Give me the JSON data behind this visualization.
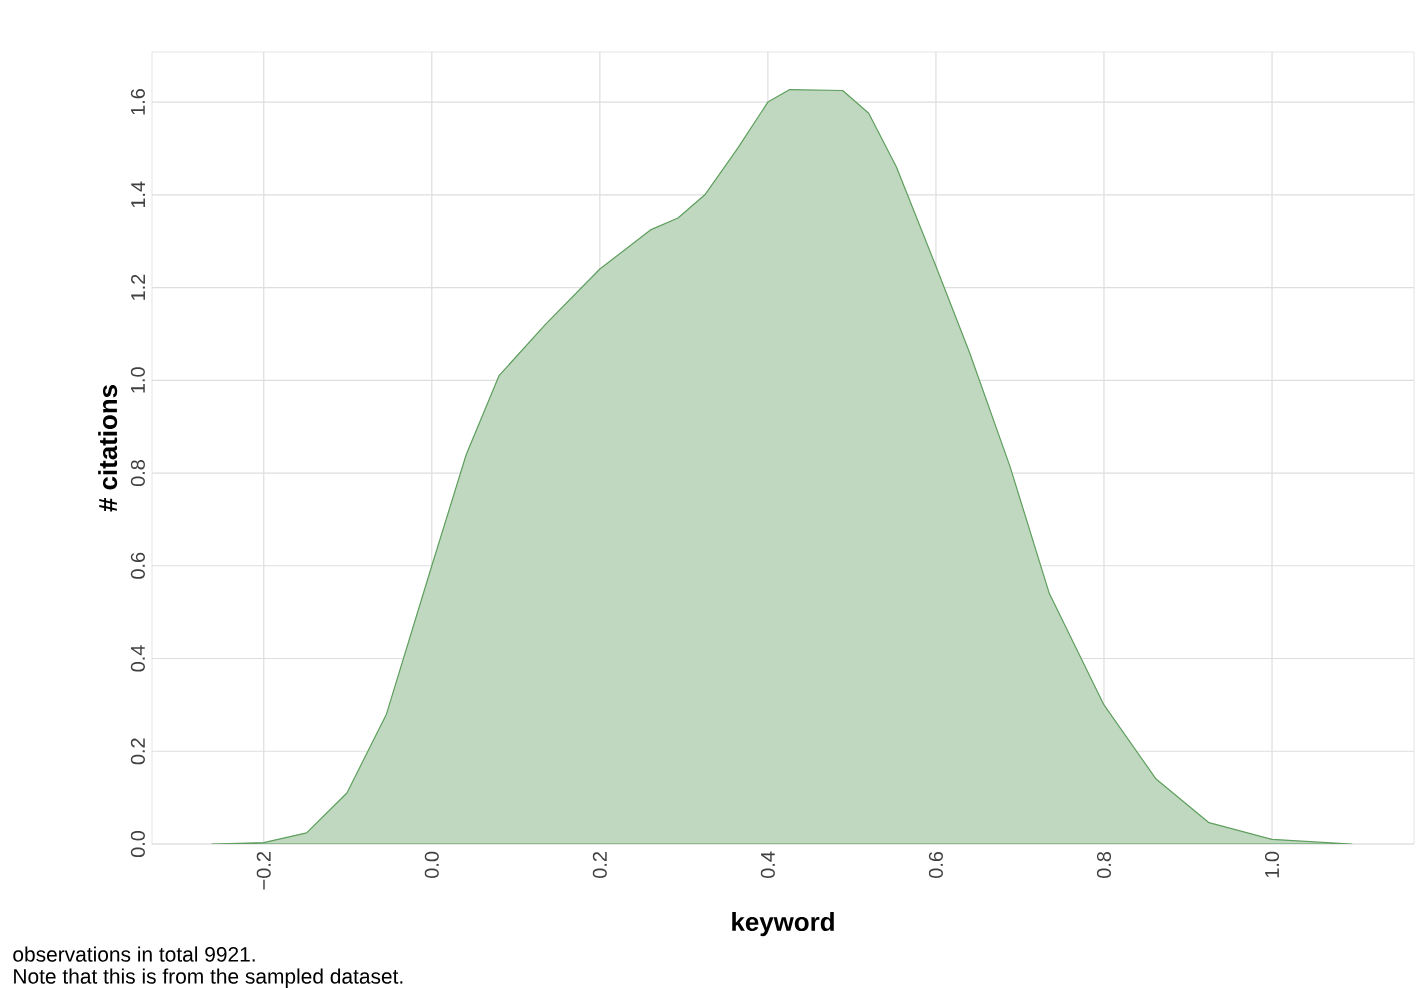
{
  "chart_data": {
    "type": "area",
    "xlabel": "keyword",
    "ylabel": "# citations",
    "annotations": [
      "observations in total 9921.",
      "Note that this is from the sampled dataset."
    ],
    "x": [
      -0.262,
      -0.2,
      -0.149,
      -0.101,
      -0.054,
      0.0,
      0.041,
      0.08,
      0.135,
      0.2,
      0.261,
      0.293,
      0.325,
      0.364,
      0.4,
      0.426,
      0.489,
      0.52,
      0.553,
      0.6,
      0.64,
      0.688,
      0.735,
      0.8,
      0.862,
      0.925,
      1.0,
      1.095
    ],
    "values": [
      0.0,
      0.003,
      0.024,
      0.11,
      0.28,
      0.6,
      0.84,
      1.01,
      1.12,
      1.24,
      1.325,
      1.35,
      1.4,
      1.5,
      1.6,
      1.627,
      1.625,
      1.576,
      1.46,
      1.246,
      1.06,
      0.815,
      0.54,
      0.3,
      0.14,
      0.046,
      0.01,
      0.0
    ],
    "color": "#5e9e5e",
    "xlim": [
      -0.333,
      1.169
    ],
    "ylim": [
      0,
      1.708
    ],
    "xticks": [
      {
        "value": -0.2,
        "label": "−0.2"
      },
      {
        "value": 0.0,
        "label": "0.0"
      },
      {
        "value": 0.2,
        "label": "0.2"
      },
      {
        "value": 0.4,
        "label": "0.4"
      },
      {
        "value": 0.6,
        "label": "0.6"
      },
      {
        "value": 0.8,
        "label": "0.8"
      },
      {
        "value": 1.0,
        "label": "1.0"
      }
    ],
    "yticks": [
      {
        "value": 0.0,
        "label": "0.0"
      },
      {
        "value": 0.2,
        "label": "0.2"
      },
      {
        "value": 0.4,
        "label": "0.4"
      },
      {
        "value": 0.6,
        "label": "0.6"
      },
      {
        "value": 0.8,
        "label": "0.8"
      },
      {
        "value": 1.0,
        "label": "1.0"
      },
      {
        "value": 1.2,
        "label": "1.2"
      },
      {
        "value": 1.4,
        "label": "1.4"
      },
      {
        "value": 1.6,
        "label": "1.6"
      }
    ],
    "grid": true
  }
}
